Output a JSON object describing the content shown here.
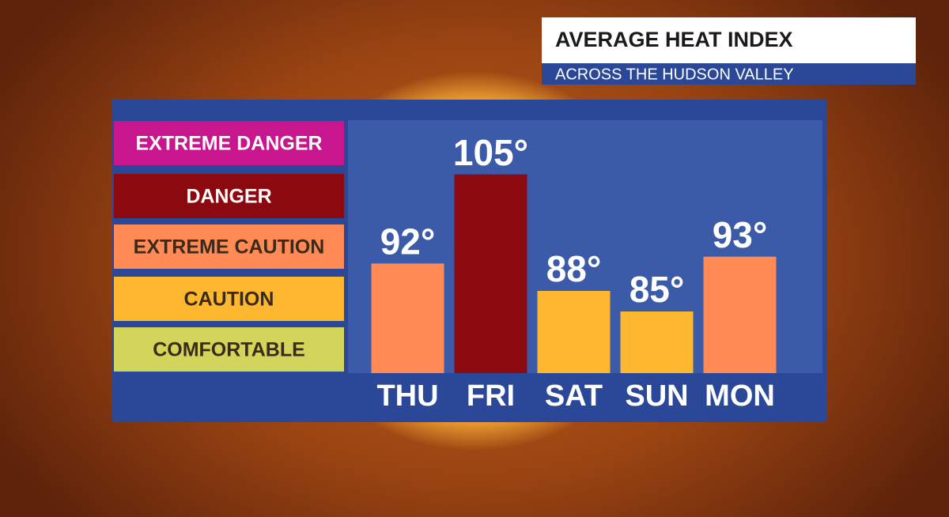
{
  "chart_data": {
    "type": "bar",
    "title": "AVERAGE HEAT INDEX",
    "subtitle": "ACROSS THE HUDSON VALLEY",
    "categories": [
      "THU",
      "FRI",
      "SAT",
      "SUN",
      "MON"
    ],
    "values": [
      92,
      105,
      88,
      85,
      93
    ],
    "value_labels": [
      "92°",
      "105°",
      "88°",
      "85°",
      "93°"
    ],
    "colors": [
      "#ff8a55",
      "#8b0a0f",
      "#fdb82f",
      "#fdb82f",
      "#ff8a55"
    ],
    "ylim": [
      76,
      112
    ],
    "legend": {
      "items": [
        {
          "label": "EXTREME DANGER",
          "color": "#c8168f"
        },
        {
          "label": "DANGER",
          "color": "#8b0a0f"
        },
        {
          "label": "EXTREME CAUTION",
          "color": "#ff8a55"
        },
        {
          "label": "CAUTION",
          "color": "#fdb82f"
        },
        {
          "label": "COMFORTABLE",
          "color": "#d2d45c"
        }
      ]
    }
  }
}
